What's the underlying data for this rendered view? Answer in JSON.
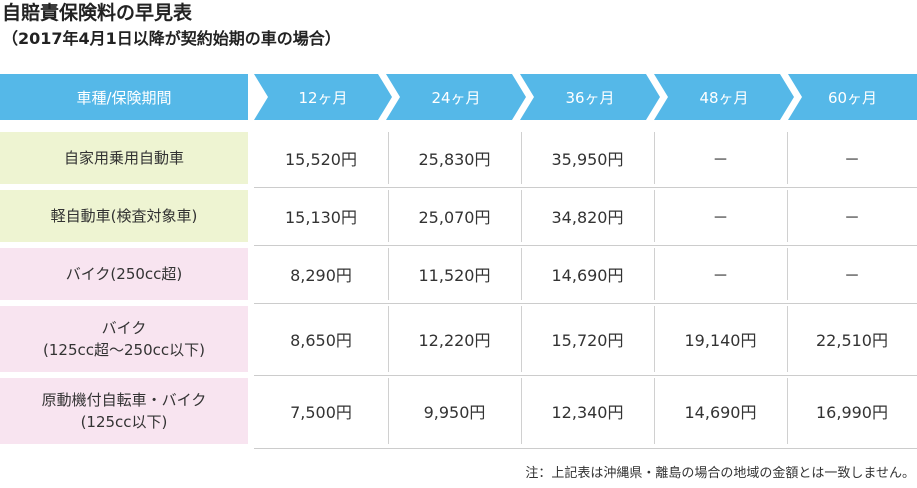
{
  "title": "自賠責保険料の早見表",
  "subtitle": "（2017年4月1日以降が契約始期の車の場合）",
  "table": {
    "headers": [
      "車種/保険期間",
      "12ヶ月",
      "24ヶ月",
      "36ヶ月",
      "48ヶ月",
      "60ヶ月"
    ],
    "rows": [
      {
        "label": "自家用乗用自動車",
        "values": [
          "15,520円",
          "25,830円",
          "35,950円",
          "－",
          "－"
        ]
      },
      {
        "label": "軽自動車(検査対象車)",
        "values": [
          "15,130円",
          "25,070円",
          "34,820円",
          "－",
          "－"
        ]
      },
      {
        "label": "バイク(250cc超)",
        "values": [
          "8,290円",
          "11,520円",
          "14,690円",
          "－",
          "－"
        ]
      },
      {
        "label_line1": "バイク",
        "label_line2": "(125cc超～250cc以下)",
        "values": [
          "8,650円",
          "12,220円",
          "15,720円",
          "19,140円",
          "22,510円"
        ]
      },
      {
        "label_line1": "原動機付自転車・バイク",
        "label_line2": "(125cc以下)",
        "values": [
          "7,500円",
          "9,950円",
          "12,340円",
          "14,690円",
          "16,990円"
        ]
      }
    ]
  },
  "note": "注：上記表は沖縄県・離島の場合の地域の金額とは一致しません。",
  "colors": {
    "header_bg": "#55b8e8",
    "car_label_bg": "#eef4d2",
    "bike_label_bg": "#f8e4f0"
  }
}
